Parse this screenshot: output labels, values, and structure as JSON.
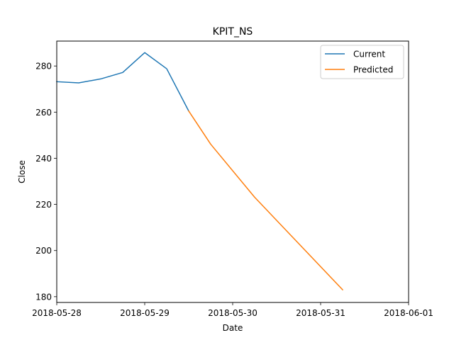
{
  "chart_data": {
    "type": "line",
    "title": "KPIT_NS",
    "xlabel": "Date",
    "ylabel": "Close",
    "x_type": "datetime",
    "xlim": [
      "2018-05-28T00:00",
      "2018-06-01T00:00"
    ],
    "ylim": [
      177.5,
      290.8
    ],
    "x_ticks": [
      "2018-05-28",
      "2018-05-29",
      "2018-05-30",
      "2018-05-31",
      "2018-06-01"
    ],
    "y_ticks": [
      180,
      200,
      220,
      240,
      260,
      280
    ],
    "grid": false,
    "legend_position": "top-right",
    "series": [
      {
        "name": "Current",
        "color": "#1f77b4",
        "points": [
          {
            "x": "2018-05-28T00:00",
            "y": 273.2
          },
          {
            "x": "2018-05-28T06:00",
            "y": 272.7
          },
          {
            "x": "2018-05-28T12:00",
            "y": 274.4
          },
          {
            "x": "2018-05-28T18:00",
            "y": 277.2
          },
          {
            "x": "2018-05-29T00:00",
            "y": 285.8
          },
          {
            "x": "2018-05-29T06:00",
            "y": 278.8
          },
          {
            "x": "2018-05-29T12:00",
            "y": 260.5
          }
        ]
      },
      {
        "name": "Predicted",
        "color": "#ff7f0e",
        "points": [
          {
            "x": "2018-05-29T12:00",
            "y": 260.5
          },
          {
            "x": "2018-05-29T18:00",
            "y": 246.1
          },
          {
            "x": "2018-05-30T06:00",
            "y": 223.1
          },
          {
            "x": "2018-05-31T06:00",
            "y": 183.0
          }
        ]
      }
    ]
  }
}
